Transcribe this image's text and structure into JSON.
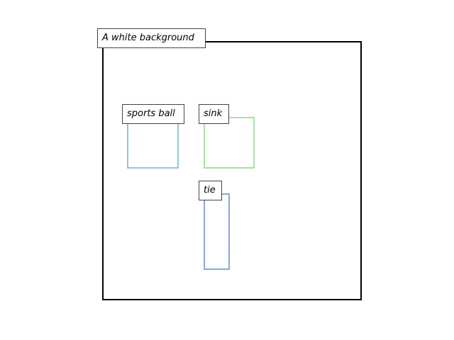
{
  "scene": {
    "caption": "A white background",
    "background_color": "#ffffff",
    "frame_color": "#000000"
  },
  "objects": [
    {
      "label": "sports ball",
      "color": "#92c5de"
    },
    {
      "label": "sink",
      "color": "#a6e3a1"
    },
    {
      "label": "tie",
      "color": "#8aa6dd"
    }
  ]
}
